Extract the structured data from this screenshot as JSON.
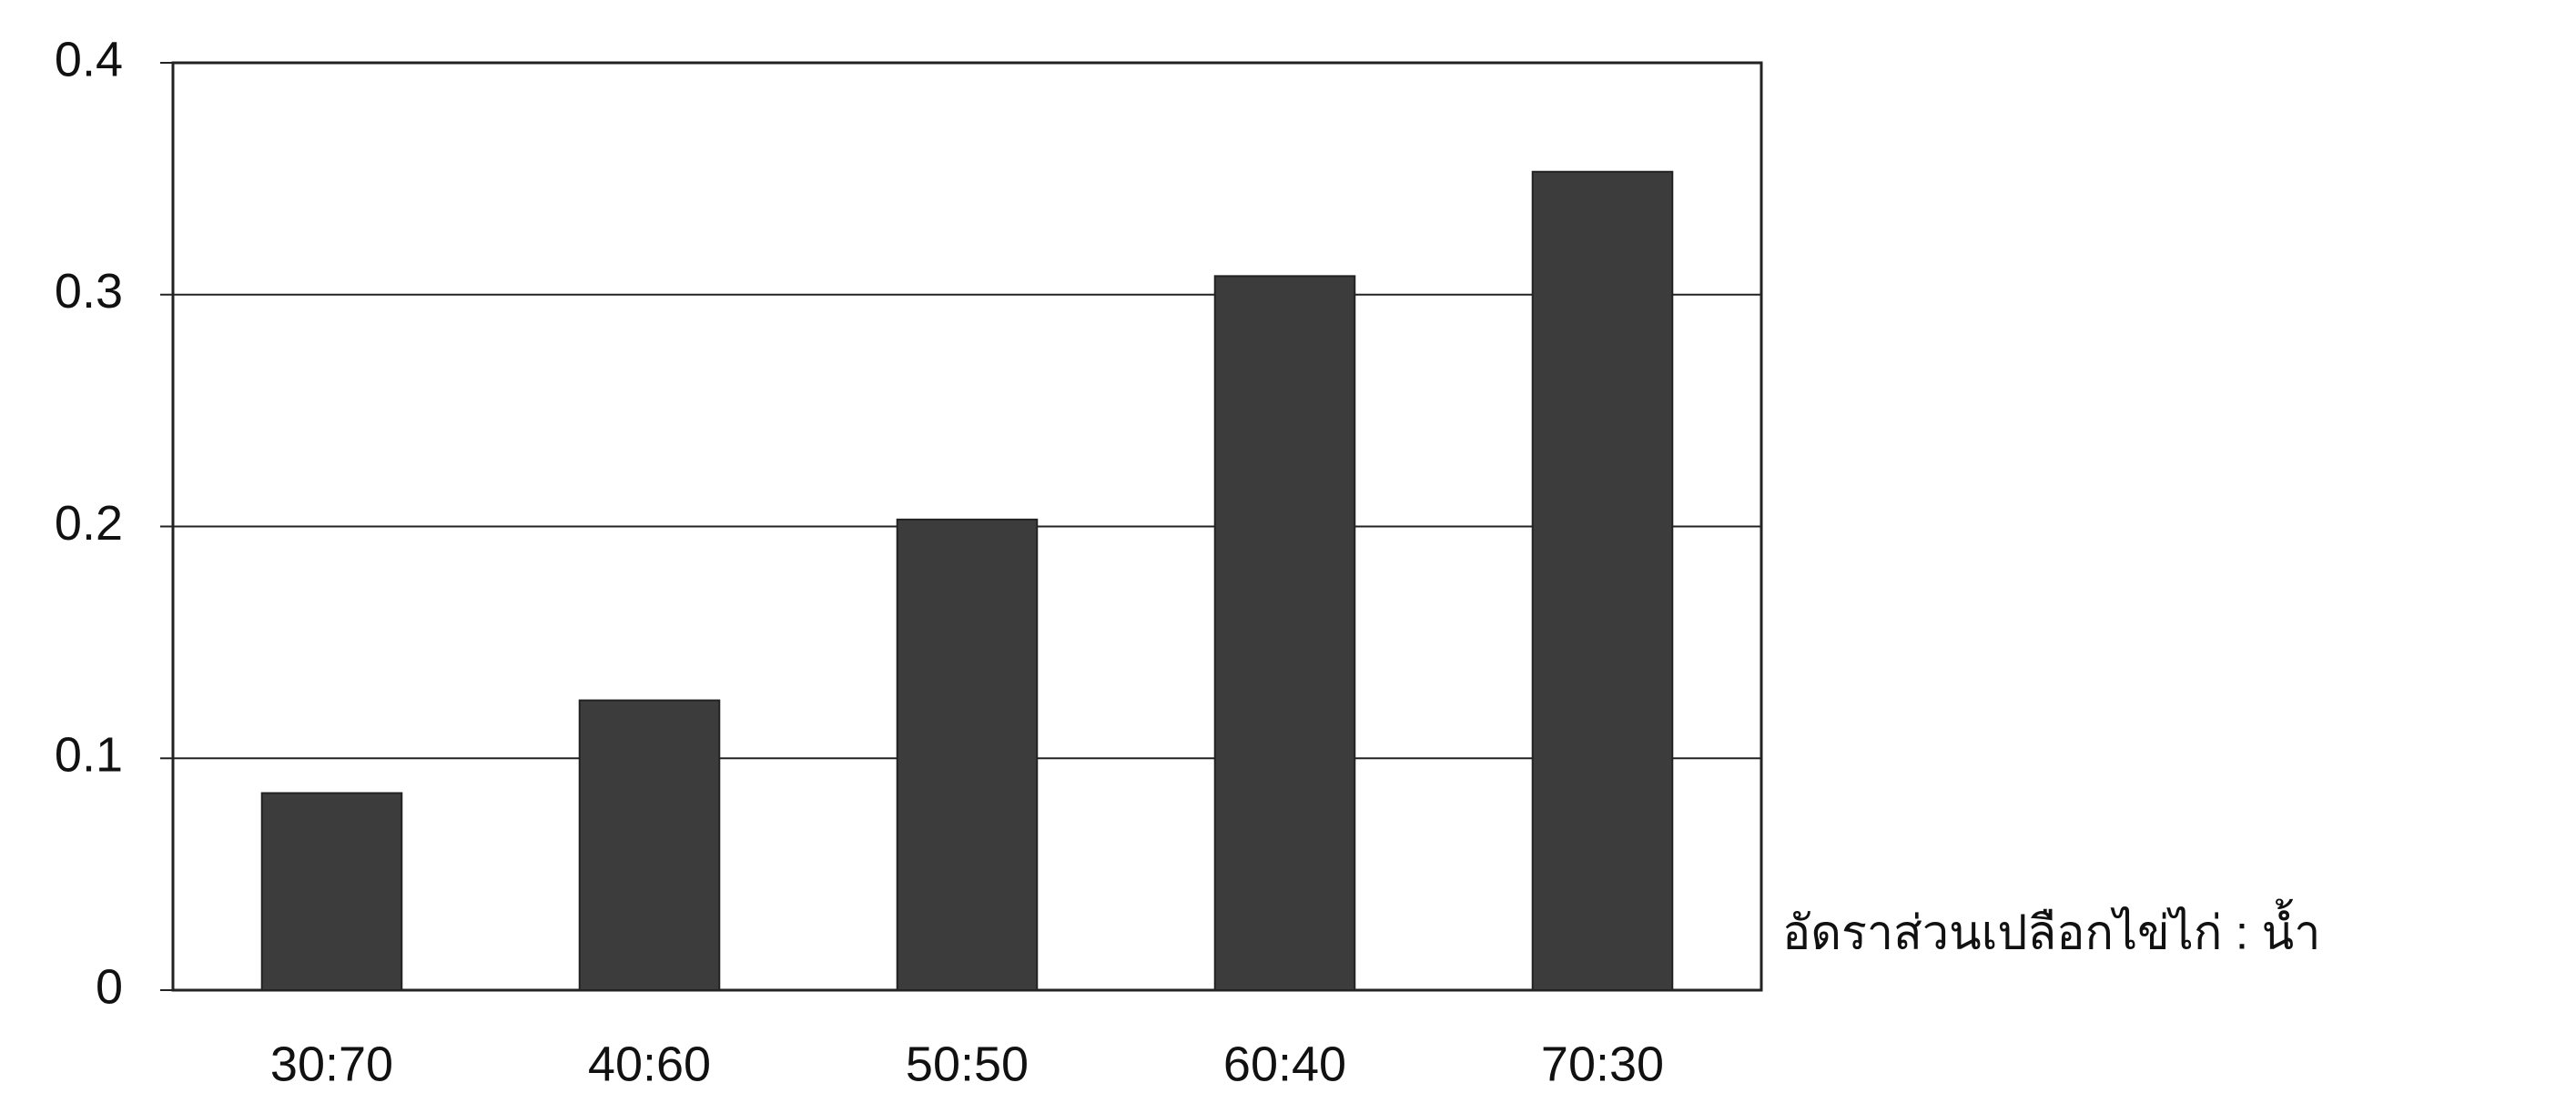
{
  "chart_data": {
    "type": "bar",
    "x_label": "อัดราส่วนเปลือกไข่ไก่ : น้ำ",
    "categories": [
      "30:70",
      "40:60",
      "50:50",
      "60:40",
      "70:30"
    ],
    "values": [
      0.085,
      0.125,
      0.203,
      0.308,
      0.353
    ],
    "color": "#3c3c3c",
    "ylim": [
      0,
      0.4
    ],
    "yticks": [
      0,
      0.1,
      0.2,
      0.3,
      0.4
    ],
    "grid": true
  }
}
